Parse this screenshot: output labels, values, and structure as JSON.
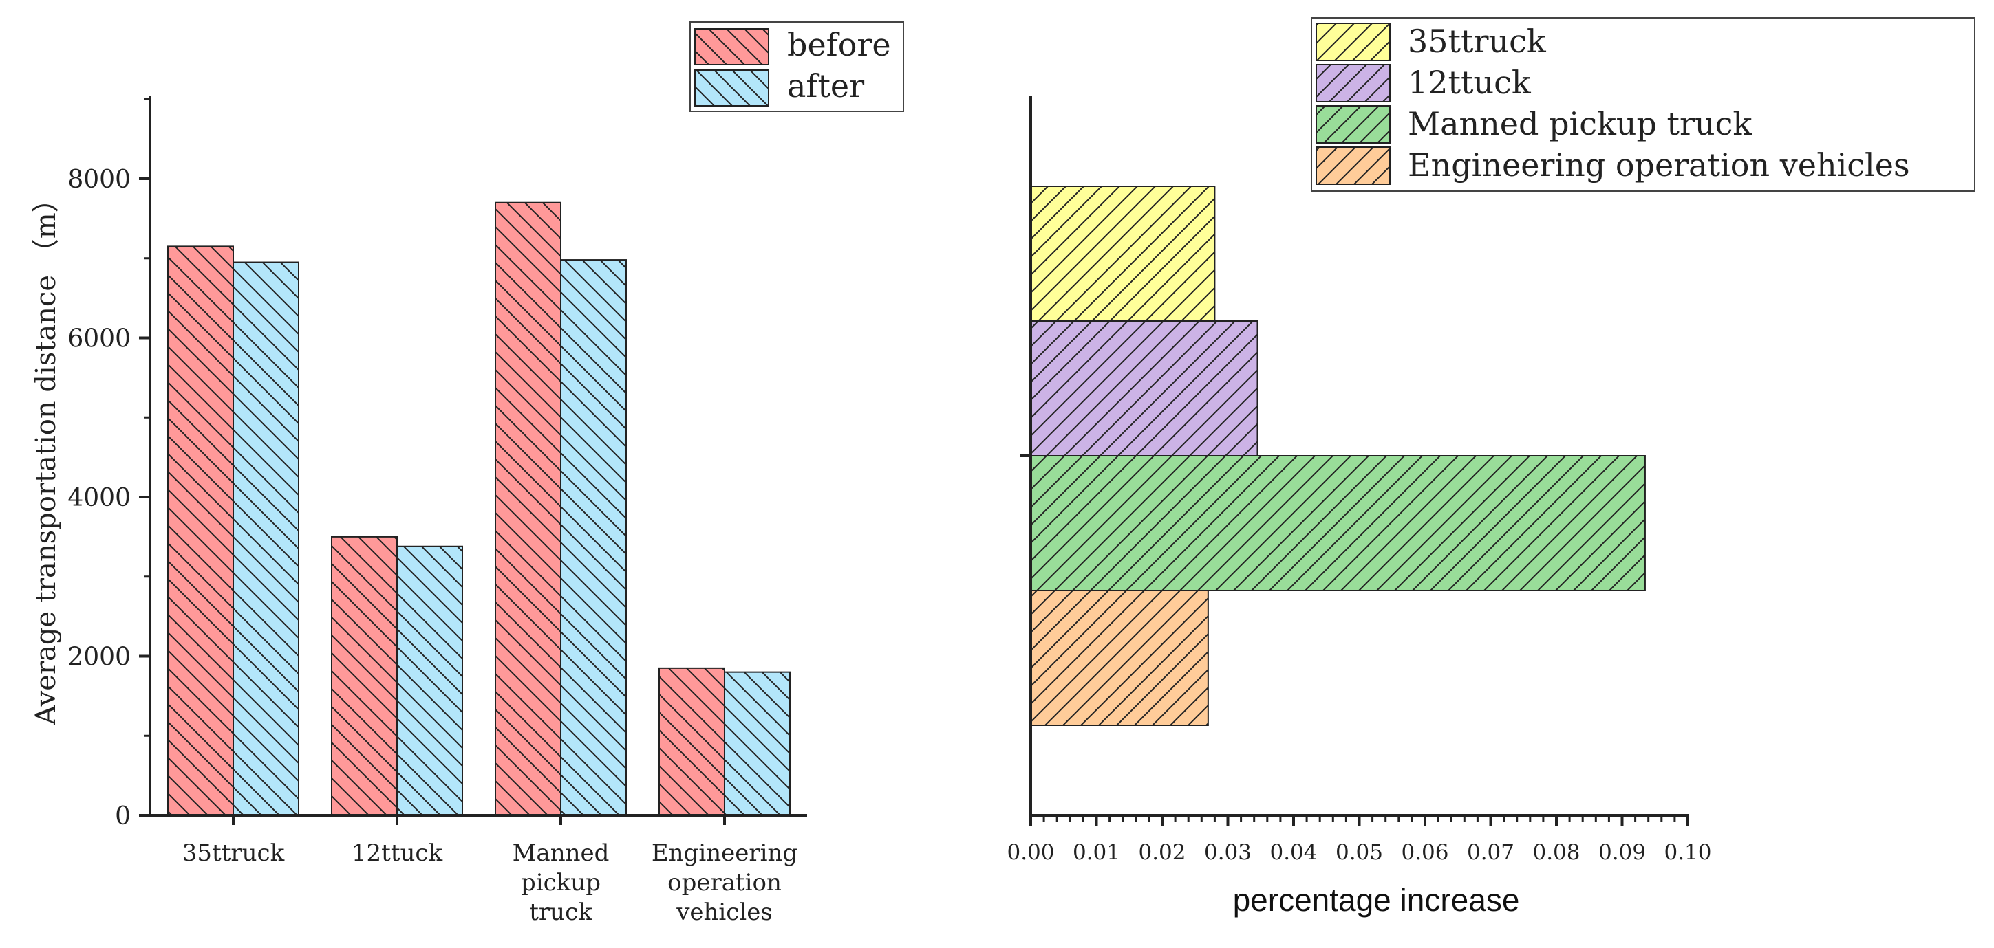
{
  "chart_data": [
    {
      "type": "bar",
      "orientation": "vertical",
      "title": "",
      "xlabel": "",
      "ylabel": "Average transportation distance （m）",
      "ylim": [
        0,
        9000
      ],
      "yticks": [
        0,
        2000,
        4000,
        6000,
        8000
      ],
      "grid": false,
      "legend_position": "top-right",
      "categories": [
        [
          "35ttruck"
        ],
        [
          "12ttuck"
        ],
        [
          "Manned",
          "pickup",
          "truck"
        ],
        [
          "Engineering",
          "operation",
          "vehicles"
        ]
      ],
      "series": [
        {
          "name": "before",
          "color": "#FF9999",
          "values": [
            7150,
            3500,
            7700,
            1850
          ]
        },
        {
          "name": "after",
          "color": "#B3E6FA",
          "values": [
            6950,
            3380,
            6980,
            1800
          ]
        }
      ]
    },
    {
      "type": "bar",
      "orientation": "horizontal",
      "title": "",
      "xlabel": "percentage increase",
      "ylabel": "",
      "xlim": [
        0,
        0.1
      ],
      "xticks": [
        "0.00",
        "0.01",
        "0.02",
        "0.03",
        "0.04",
        "0.05",
        "0.06",
        "0.07",
        "0.08",
        "0.09",
        "0.10"
      ],
      "grid": false,
      "legend_position": "top-right",
      "series": [
        {
          "name": "35ttruck",
          "color": "#FFFF99",
          "value": 0.028
        },
        {
          "name": "12ttuck",
          "color": "#CCB3E6",
          "value": 0.0345
        },
        {
          "name": "Manned pickup truck",
          "color": "#99DD99",
          "value": 0.0935
        },
        {
          "name": "Engineering operation vehicles",
          "color": "#FFCC99",
          "value": 0.027
        }
      ]
    }
  ]
}
